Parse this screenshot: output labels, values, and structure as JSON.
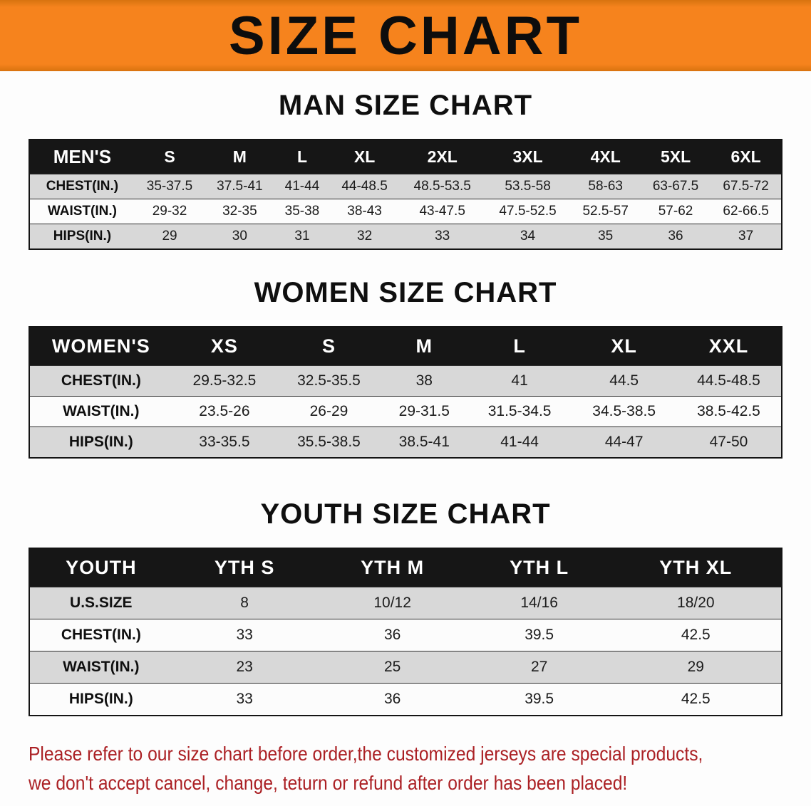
{
  "banner": {
    "title": "SIZE CHART"
  },
  "sections": [
    {
      "id": "men",
      "heading": "MAN SIZE CHART",
      "header": [
        "MEN'S",
        "S",
        "M",
        "L",
        "XL",
        "2XL",
        "3XL",
        "4XL",
        "5XL",
        "6XL"
      ],
      "rows": [
        [
          "CHEST(IN.)",
          "35-37.5",
          "37.5-41",
          "41-44",
          "44-48.5",
          "48.5-53.5",
          "53.5-58",
          "58-63",
          "63-67.5",
          "67.5-72"
        ],
        [
          "WAIST(IN.)",
          "29-32",
          "32-35",
          "35-38",
          "38-43",
          "43-47.5",
          "47.5-52.5",
          "52.5-57",
          "57-62",
          "62-66.5"
        ],
        [
          "HIPS(IN.)",
          "29",
          "30",
          "31",
          "32",
          "33",
          "34",
          "35",
          "36",
          "37"
        ]
      ]
    },
    {
      "id": "women",
      "heading": "WOMEN SIZE CHART",
      "header": [
        "WOMEN'S",
        "XS",
        "S",
        "M",
        "L",
        "XL",
        "XXL"
      ],
      "rows": [
        [
          "CHEST(IN.)",
          "29.5-32.5",
          "32.5-35.5",
          "38",
          "41",
          "44.5",
          "44.5-48.5"
        ],
        [
          "WAIST(IN.)",
          "23.5-26",
          "26-29",
          "29-31.5",
          "31.5-34.5",
          "34.5-38.5",
          "38.5-42.5"
        ],
        [
          "HIPS(IN.)",
          "33-35.5",
          "35.5-38.5",
          "38.5-41",
          "41-44",
          "44-47",
          "47-50"
        ]
      ]
    },
    {
      "id": "youth",
      "heading": "YOUTH SIZE CHART",
      "header": [
        "YOUTH",
        "YTH S",
        "YTH M",
        "YTH L",
        "YTH XL"
      ],
      "rows": [
        [
          "U.S.SIZE",
          "8",
          "10/12",
          "14/16",
          "18/20"
        ],
        [
          "CHEST(IN.)",
          "33",
          "36",
          "39.5",
          "42.5"
        ],
        [
          "WAIST(IN.)",
          "23",
          "25",
          "27",
          "29"
        ],
        [
          "HIPS(IN.)",
          "33",
          "36",
          "39.5",
          "42.5"
        ]
      ]
    }
  ],
  "disclaimer": [
    "Please refer to our size chart before order,the customized jerseys are special products,",
    "we don't accept cancel, change, teturn or refund after order has been placed!"
  ],
  "colors": {
    "banner_bg": "#f6831d",
    "header_bg": "#161616",
    "row_alt_bg": "#d8d8d8",
    "disclaimer_color": "#ab2024"
  }
}
